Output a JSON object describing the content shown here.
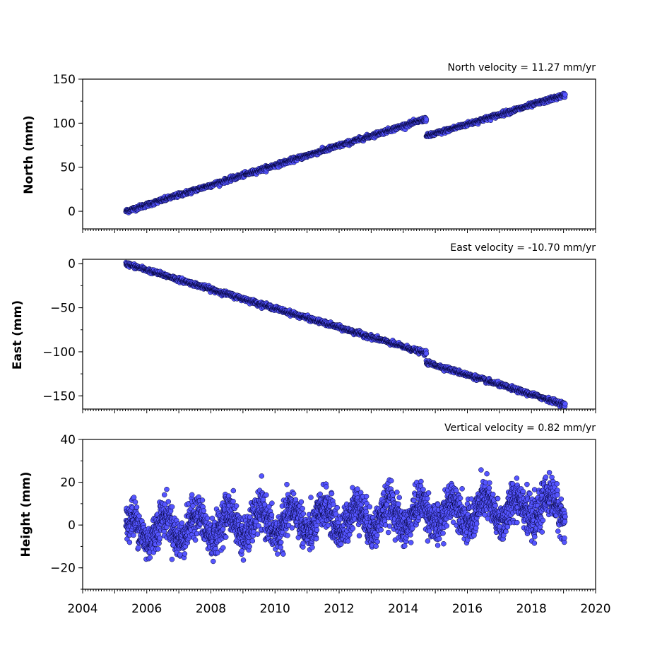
{
  "point_color": "#5555ff",
  "point_edge_color": "#000033",
  "chart_data": [
    {
      "type": "scatter",
      "title": "North velocity = 11.27 mm/yr",
      "ylabel": "North (mm)",
      "xlim": [
        2004,
        2020
      ],
      "ylim": [
        -20,
        150
      ],
      "yticks": [
        0,
        50,
        100,
        150
      ],
      "segments": [
        {
          "start": [
            2005.35,
            0
          ],
          "end": [
            2014.72,
            105
          ],
          "noise": 1.2
        },
        {
          "start": [
            2014.72,
            85
          ],
          "end": [
            2019.05,
            132
          ],
          "noise": 1.2
        }
      ]
    },
    {
      "type": "scatter",
      "title": "East velocity = -10.70 mm/yr",
      "ylabel": "East (mm)",
      "xlim": [
        2004,
        2020
      ],
      "ylim": [
        -165,
        5
      ],
      "yticks": [
        0,
        -50,
        -100,
        -150
      ],
      "segments": [
        {
          "start": [
            2005.35,
            0
          ],
          "end": [
            2014.72,
            -102
          ],
          "noise": 1.2
        },
        {
          "start": [
            2014.72,
            -112
          ],
          "end": [
            2019.05,
            -160
          ],
          "noise": 1.2
        }
      ]
    },
    {
      "type": "scatter",
      "title": "Vertical velocity = 0.82 mm/yr",
      "ylabel": "Height (mm)",
      "xlim": [
        2004,
        2020
      ],
      "ylim": [
        -30,
        40
      ],
      "yticks": [
        -20,
        0,
        20,
        40
      ],
      "xticks": [
        2004,
        2006,
        2008,
        2010,
        2012,
        2014,
        2016,
        2018,
        2020
      ],
      "velocity": 0.82,
      "intercept": -2.5,
      "annual_amplitude": 6,
      "noise": 4.5,
      "x_range": [
        2005.35,
        2019.05
      ]
    }
  ]
}
